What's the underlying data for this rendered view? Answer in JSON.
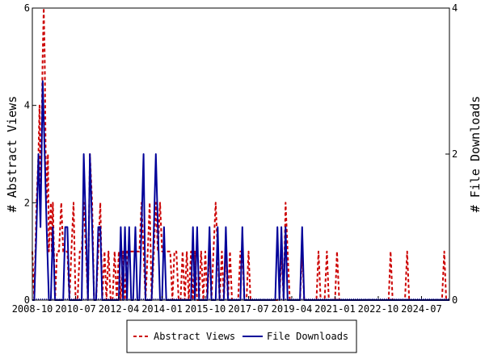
{
  "chart_data": {
    "type": "line",
    "x_tick_labels": [
      "2008-10",
      "2010-07",
      "2012-04",
      "2014-01",
      "2015-10",
      "2017-07",
      "2019-04",
      "2021-01",
      "2022-10",
      "2024-07"
    ],
    "x_tick_values": [
      2008.75,
      2010.5,
      2012.25,
      2014.0,
      2015.75,
      2017.5,
      2019.25,
      2021.0,
      2022.75,
      2024.5
    ],
    "x_range": [
      2008.75,
      2025.63
    ],
    "y_left": {
      "label": "# Abstract Views",
      "range": [
        0,
        6
      ],
      "ticks": [
        0,
        2,
        4,
        6
      ]
    },
    "y_right": {
      "label": "# File Downloads",
      "range": [
        0,
        4
      ],
      "ticks": [
        0,
        2,
        4
      ]
    },
    "legend_placement": "bottom",
    "series": [
      {
        "name": "Abstract Views",
        "axis": "left",
        "color": "#cc0000",
        "style": "dashed",
        "points": [
          [
            2008.75,
            1
          ],
          [
            2008.83,
            0
          ],
          [
            2008.92,
            2
          ],
          [
            2009.0,
            3
          ],
          [
            2009.04,
            4
          ],
          [
            2009.08,
            2
          ],
          [
            2009.17,
            5
          ],
          [
            2009.21,
            6
          ],
          [
            2009.25,
            5
          ],
          [
            2009.29,
            3
          ],
          [
            2009.33,
            2
          ],
          [
            2009.38,
            3
          ],
          [
            2009.42,
            1
          ],
          [
            2009.5,
            2
          ],
          [
            2009.54,
            1
          ],
          [
            2009.58,
            2
          ],
          [
            2009.67,
            0
          ],
          [
            2009.75,
            1
          ],
          [
            2009.83,
            1
          ],
          [
            2009.92,
            2
          ],
          [
            2010.0,
            1
          ],
          [
            2010.08,
            1
          ],
          [
            2010.17,
            1
          ],
          [
            2010.25,
            0
          ],
          [
            2010.33,
            1
          ],
          [
            2010.42,
            2
          ],
          [
            2010.5,
            0
          ],
          [
            2010.58,
            0
          ],
          [
            2010.67,
            1
          ],
          [
            2010.75,
            1
          ],
          [
            2010.83,
            2
          ],
          [
            2010.92,
            1
          ],
          [
            2011.0,
            0
          ],
          [
            2011.08,
            3
          ],
          [
            2011.17,
            2
          ],
          [
            2011.25,
            0
          ],
          [
            2011.33,
            0
          ],
          [
            2011.42,
            1
          ],
          [
            2011.5,
            2
          ],
          [
            2011.58,
            0
          ],
          [
            2011.67,
            1
          ],
          [
            2011.75,
            0
          ],
          [
            2011.83,
            1
          ],
          [
            2011.92,
            0
          ],
          [
            2012.0,
            0
          ],
          [
            2012.08,
            1
          ],
          [
            2012.17,
            0
          ],
          [
            2012.25,
            1
          ],
          [
            2012.33,
            0
          ],
          [
            2012.42,
            1
          ],
          [
            2012.5,
            0
          ],
          [
            2012.58,
            1
          ],
          [
            2012.67,
            1
          ],
          [
            2012.75,
            1
          ],
          [
            2012.83,
            1
          ],
          [
            2012.92,
            1
          ],
          [
            2013.0,
            1
          ],
          [
            2013.08,
            1
          ],
          [
            2013.17,
            2
          ],
          [
            2013.25,
            1
          ],
          [
            2013.33,
            0
          ],
          [
            2013.42,
            1
          ],
          [
            2013.5,
            2
          ],
          [
            2013.58,
            0
          ],
          [
            2013.67,
            1
          ],
          [
            2013.75,
            2
          ],
          [
            2013.83,
            1
          ],
          [
            2013.92,
            2
          ],
          [
            2014.0,
            1
          ],
          [
            2014.08,
            1
          ],
          [
            2014.17,
            1
          ],
          [
            2014.25,
            1
          ],
          [
            2014.33,
            1
          ],
          [
            2014.42,
            0
          ],
          [
            2014.5,
            1
          ],
          [
            2014.58,
            1
          ],
          [
            2014.67,
            0
          ],
          [
            2014.75,
            0
          ],
          [
            2014.83,
            1
          ],
          [
            2014.92,
            0
          ],
          [
            2015.0,
            1
          ],
          [
            2015.08,
            0
          ],
          [
            2015.17,
            1
          ],
          [
            2015.25,
            0
          ],
          [
            2015.33,
            1
          ],
          [
            2015.42,
            0
          ],
          [
            2015.5,
            0
          ],
          [
            2015.58,
            1
          ],
          [
            2015.67,
            0
          ],
          [
            2015.75,
            1
          ],
          [
            2015.83,
            0
          ],
          [
            2015.92,
            1
          ],
          [
            2016.0,
            0
          ],
          [
            2016.08,
            1
          ],
          [
            2016.17,
            2
          ],
          [
            2016.25,
            1
          ],
          [
            2016.33,
            0
          ],
          [
            2016.42,
            1
          ],
          [
            2016.5,
            0
          ],
          [
            2016.58,
            1
          ],
          [
            2016.67,
            0
          ],
          [
            2016.75,
            1
          ],
          [
            2016.83,
            0
          ],
          [
            2016.92,
            0
          ],
          [
            2017.0,
            0
          ],
          [
            2017.08,
            0
          ],
          [
            2017.17,
            1
          ],
          [
            2017.25,
            1
          ],
          [
            2017.33,
            0
          ],
          [
            2017.42,
            0
          ],
          [
            2017.5,
            1
          ],
          [
            2017.58,
            0
          ],
          [
            2017.67,
            0
          ],
          [
            2017.75,
            0
          ],
          [
            2017.83,
            0
          ],
          [
            2017.92,
            0
          ],
          [
            2018.0,
            0
          ],
          [
            2018.08,
            0
          ],
          [
            2018.17,
            0
          ],
          [
            2018.25,
            0
          ],
          [
            2018.33,
            0
          ],
          [
            2018.42,
            0
          ],
          [
            2018.5,
            0
          ],
          [
            2018.58,
            0
          ],
          [
            2018.67,
            0
          ],
          [
            2018.75,
            0
          ],
          [
            2018.83,
            1
          ],
          [
            2018.92,
            0
          ],
          [
            2019.0,
            2
          ],
          [
            2019.08,
            1
          ],
          [
            2019.17,
            0
          ],
          [
            2019.25,
            0
          ],
          [
            2019.33,
            0
          ],
          [
            2019.42,
            0
          ],
          [
            2019.5,
            0
          ],
          [
            2019.58,
            0
          ],
          [
            2019.67,
            1
          ],
          [
            2019.75,
            0
          ],
          [
            2019.83,
            0
          ],
          [
            2019.92,
            0
          ],
          [
            2020.0,
            0
          ],
          [
            2020.08,
            0
          ],
          [
            2020.17,
            0
          ],
          [
            2020.25,
            0
          ],
          [
            2020.33,
            1
          ],
          [
            2020.42,
            0
          ],
          [
            2020.5,
            0
          ],
          [
            2020.58,
            0
          ],
          [
            2020.67,
            1
          ],
          [
            2020.75,
            0
          ],
          [
            2020.83,
            0
          ],
          [
            2020.92,
            0
          ],
          [
            2021.0,
            0
          ],
          [
            2021.08,
            1
          ],
          [
            2021.17,
            0
          ],
          [
            2021.5,
            0
          ],
          [
            2022.0,
            0
          ],
          [
            2022.5,
            0
          ],
          [
            2023.0,
            0
          ],
          [
            2023.17,
            0
          ],
          [
            2023.25,
            1
          ],
          [
            2023.33,
            0
          ],
          [
            2023.83,
            0
          ],
          [
            2023.92,
            1
          ],
          [
            2024.0,
            0
          ],
          [
            2024.5,
            0
          ],
          [
            2025.0,
            0
          ],
          [
            2025.33,
            0
          ],
          [
            2025.42,
            1
          ],
          [
            2025.5,
            0
          ],
          [
            2025.63,
            0
          ]
        ]
      },
      {
        "name": "File Downloads",
        "axis": "right",
        "color": "#000099",
        "style": "solid",
        "points": [
          [
            2008.75,
            0
          ],
          [
            2008.83,
            0
          ],
          [
            2008.92,
            1
          ],
          [
            2009.0,
            2
          ],
          [
            2009.08,
            1
          ],
          [
            2009.17,
            3
          ],
          [
            2009.25,
            2
          ],
          [
            2009.33,
            1
          ],
          [
            2009.42,
            0
          ],
          [
            2009.5,
            0
          ],
          [
            2009.58,
            1
          ],
          [
            2009.67,
            0
          ],
          [
            2009.75,
            0
          ],
          [
            2009.83,
            0
          ],
          [
            2009.92,
            0
          ],
          [
            2010.0,
            0
          ],
          [
            2010.08,
            1
          ],
          [
            2010.17,
            1
          ],
          [
            2010.25,
            0
          ],
          [
            2010.33,
            0
          ],
          [
            2010.5,
            0
          ],
          [
            2010.58,
            0
          ],
          [
            2010.67,
            0
          ],
          [
            2010.75,
            0
          ],
          [
            2010.83,
            2
          ],
          [
            2010.92,
            1
          ],
          [
            2011.0,
            0
          ],
          [
            2011.08,
            2
          ],
          [
            2011.17,
            1
          ],
          [
            2011.25,
            0
          ],
          [
            2011.33,
            0
          ],
          [
            2011.42,
            1
          ],
          [
            2011.5,
            1
          ],
          [
            2011.58,
            0
          ],
          [
            2011.67,
            0
          ],
          [
            2011.75,
            0
          ],
          [
            2011.83,
            0
          ],
          [
            2011.92,
            0
          ],
          [
            2012.0,
            0
          ],
          [
            2012.08,
            0
          ],
          [
            2012.17,
            0
          ],
          [
            2012.25,
            0
          ],
          [
            2012.33,
            1
          ],
          [
            2012.42,
            0
          ],
          [
            2012.5,
            1
          ],
          [
            2012.58,
            0
          ],
          [
            2012.67,
            1
          ],
          [
            2012.75,
            0
          ],
          [
            2012.83,
            0
          ],
          [
            2012.92,
            1
          ],
          [
            2013.0,
            0
          ],
          [
            2013.08,
            0
          ],
          [
            2013.17,
            1
          ],
          [
            2013.25,
            2
          ],
          [
            2013.33,
            0
          ],
          [
            2013.42,
            0
          ],
          [
            2013.5,
            0
          ],
          [
            2013.58,
            0
          ],
          [
            2013.67,
            1
          ],
          [
            2013.75,
            2
          ],
          [
            2013.83,
            1
          ],
          [
            2013.92,
            0
          ],
          [
            2014.0,
            0
          ],
          [
            2014.08,
            1
          ],
          [
            2014.17,
            0
          ],
          [
            2014.25,
            0
          ],
          [
            2014.33,
            0
          ],
          [
            2014.42,
            0
          ],
          [
            2014.5,
            0
          ],
          [
            2014.58,
            0
          ],
          [
            2014.67,
            0
          ],
          [
            2014.75,
            0
          ],
          [
            2014.83,
            0
          ],
          [
            2014.92,
            0
          ],
          [
            2015.0,
            0
          ],
          [
            2015.08,
            0
          ],
          [
            2015.17,
            0
          ],
          [
            2015.25,
            1
          ],
          [
            2015.33,
            0
          ],
          [
            2015.42,
            1
          ],
          [
            2015.5,
            0
          ],
          [
            2015.58,
            0
          ],
          [
            2015.67,
            0
          ],
          [
            2015.75,
            0
          ],
          [
            2015.83,
            0
          ],
          [
            2015.92,
            1
          ],
          [
            2016.0,
            0
          ],
          [
            2016.08,
            0
          ],
          [
            2016.17,
            0
          ],
          [
            2016.25,
            1
          ],
          [
            2016.33,
            0
          ],
          [
            2016.42,
            0
          ],
          [
            2016.5,
            0
          ],
          [
            2016.58,
            1
          ],
          [
            2016.67,
            0
          ],
          [
            2016.75,
            0
          ],
          [
            2016.83,
            0
          ],
          [
            2016.92,
            0
          ],
          [
            2017.0,
            0
          ],
          [
            2017.17,
            0
          ],
          [
            2017.25,
            1
          ],
          [
            2017.33,
            0
          ],
          [
            2017.42,
            0
          ],
          [
            2017.5,
            0
          ],
          [
            2017.83,
            0
          ],
          [
            2018.0,
            0
          ],
          [
            2018.08,
            0
          ],
          [
            2018.17,
            0
          ],
          [
            2018.25,
            0
          ],
          [
            2018.33,
            0
          ],
          [
            2018.42,
            0
          ],
          [
            2018.5,
            0
          ],
          [
            2018.58,
            0
          ],
          [
            2018.67,
            1
          ],
          [
            2018.75,
            0
          ],
          [
            2018.83,
            1
          ],
          [
            2018.92,
            0
          ],
          [
            2019.0,
            1
          ],
          [
            2019.08,
            0
          ],
          [
            2019.17,
            0
          ],
          [
            2019.25,
            0
          ],
          [
            2019.33,
            0
          ],
          [
            2019.42,
            0
          ],
          [
            2019.5,
            0
          ],
          [
            2019.58,
            0
          ],
          [
            2019.67,
            1
          ],
          [
            2019.75,
            0
          ],
          [
            2019.83,
            0
          ],
          [
            2019.92,
            0
          ],
          [
            2020.0,
            0
          ],
          [
            2020.5,
            0
          ],
          [
            2021.0,
            0
          ],
          [
            2021.5,
            0
          ],
          [
            2022.0,
            0
          ],
          [
            2022.5,
            0
          ],
          [
            2023.0,
            0
          ],
          [
            2023.5,
            0
          ],
          [
            2024.0,
            0
          ],
          [
            2024.5,
            0
          ],
          [
            2025.0,
            0
          ],
          [
            2025.5,
            0
          ],
          [
            2025.63,
            0
          ]
        ]
      }
    ]
  }
}
